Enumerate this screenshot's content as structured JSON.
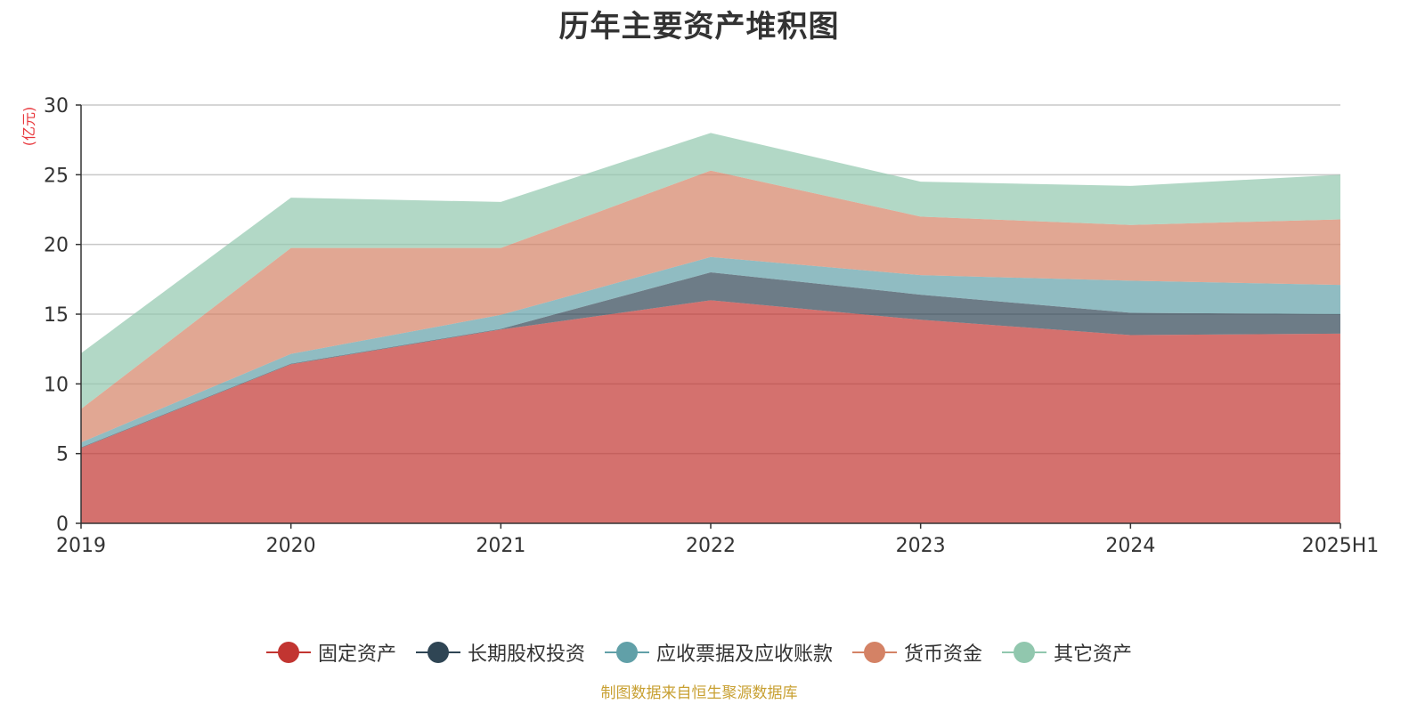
{
  "chart_data": {
    "type": "area",
    "stacked": true,
    "title": "历年主要资产堆积图",
    "ylabel": "(亿元)",
    "xlabel": "",
    "categories": [
      "2019",
      "2020",
      "2021",
      "2022",
      "2023",
      "2024",
      "2025H1"
    ],
    "ylim": [
      0,
      30
    ],
    "yticks": [
      0,
      5,
      10,
      15,
      20,
      25,
      30
    ],
    "grid": true,
    "legend_position": "bottom",
    "series": [
      {
        "name": "固定资产",
        "color": "#c23531",
        "values": [
          5.4,
          11.4,
          13.9,
          16.0,
          14.6,
          13.5,
          13.6
        ]
      },
      {
        "name": "长期股权投资",
        "color": "#2f4554",
        "values": [
          0.05,
          0.05,
          0.05,
          2.0,
          1.8,
          1.6,
          1.4
        ]
      },
      {
        "name": "应收票据及应收账款",
        "color": "#61a0a8",
        "values": [
          0.35,
          0.7,
          1.0,
          1.1,
          1.4,
          2.3,
          2.1
        ]
      },
      {
        "name": "货币资金",
        "color": "#d48265",
        "values": [
          2.4,
          7.6,
          4.8,
          6.2,
          4.2,
          4.0,
          4.7
        ]
      },
      {
        "name": "其它资产",
        "color": "#91c7ae",
        "values": [
          4.0,
          3.6,
          3.3,
          2.7,
          2.5,
          2.8,
          3.2
        ]
      }
    ]
  },
  "ui": {
    "source_note": "制图数据来自恒生聚源数据库",
    "unit_color": "#e8383d",
    "source_color": "#c8a032"
  }
}
